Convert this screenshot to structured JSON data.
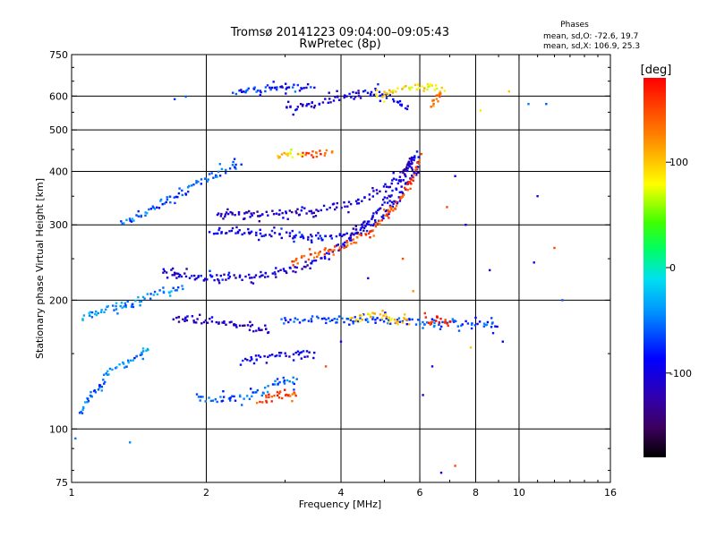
{
  "chart_data": {
    "type": "scatter",
    "title": "Tromsø 20141223 09:04:00–09:05:43",
    "subtitle": "RwPretec (8p)",
    "xlabel": "Frequency [MHz]",
    "ylabel": "Stationary phase Virtual Height [km]",
    "x_scale": "log",
    "y_scale": "log",
    "xlim": [
      1,
      16
    ],
    "ylim": [
      75,
      750
    ],
    "x_ticks": [
      1,
      2,
      4,
      6,
      8,
      10,
      16
    ],
    "x_tick_labels": [
      "1",
      "2",
      "4",
      "6",
      "8",
      "10",
      "16"
    ],
    "y_ticks": [
      75,
      100,
      200,
      300,
      400,
      500,
      600,
      750
    ],
    "y_tick_labels": [
      "75",
      "100",
      "200",
      "300",
      "400",
      "500",
      "600",
      "750"
    ],
    "grid": true,
    "grid_x": [
      2,
      4,
      6,
      8,
      10
    ],
    "grid_y": [
      100,
      200,
      300,
      400,
      500,
      600
    ],
    "stats": {
      "heading": "Phases",
      "line_o": "mean, sd,O: -72.6, 19.7",
      "line_x": "mean, sd,X: 106.9, 25.3"
    },
    "colorbar": {
      "unit": "[deg]",
      "min": -180,
      "max": 180,
      "ticks": [
        100,
        0,
        -100
      ],
      "tick_labels": [
        "100",
        "0",
        "-100"
      ],
      "colormap": "rainbow (black-purple-blue-cyan-green-yellow-orange-red)"
    },
    "point_traces": [
      {
        "x": [
          2.05,
          2.3,
          2.6,
          2.9,
          3.2,
          3.5,
          3.8,
          4.1,
          4.5,
          4.9,
          5.3,
          5.7,
          6.0
        ],
        "y": [
          290,
          290,
          288,
          285,
          282,
          280,
          279,
          283,
          293,
          310,
          340,
          380,
          420
        ],
        "phase": -95
      },
      {
        "x": [
          1.6,
          1.8,
          2.0,
          2.2,
          2.5,
          2.8,
          3.1,
          3.4,
          3.7,
          4.0,
          4.4,
          4.8,
          5.2,
          5.6,
          5.9
        ],
        "y": [
          235,
          228,
          225,
          226,
          227,
          230,
          236,
          245,
          257,
          270,
          290,
          320,
          355,
          400,
          450
        ],
        "phase": -100
      },
      {
        "x": [
          3.1,
          3.4,
          3.7,
          4.0,
          4.3,
          4.6,
          4.9,
          5.2,
          5.5,
          5.8,
          6.0
        ],
        "y": [
          248,
          252,
          258,
          265,
          275,
          288,
          305,
          325,
          350,
          390,
          430
        ],
        "phase": 150
      },
      {
        "x": [
          2.1,
          2.5,
          3.0,
          3.5,
          4.0,
          4.5,
          5.0,
          5.5,
          5.9
        ],
        "y": [
          320,
          318,
          320,
          325,
          333,
          345,
          365,
          395,
          440
        ],
        "phase": -110
      },
      {
        "x": [
          1.9,
          2.0,
          2.2,
          2.4,
          2.6,
          2.8,
          3.0,
          3.2
        ],
        "y": [
          120,
          118,
          117,
          118,
          121,
          125,
          128,
          130
        ],
        "phase": -60
      },
      {
        "x": [
          1.7,
          1.9,
          2.1,
          2.3,
          2.5,
          2.8
        ],
        "y": [
          182,
          180,
          178,
          176,
          172,
          168
        ],
        "phase": -115
      },
      {
        "x": [
          3.0,
          3.3,
          3.6,
          4.0,
          4.4,
          4.8,
          5.2,
          5.6,
          6.0,
          6.5,
          7.0,
          7.5,
          8.0,
          8.5,
          9.0
        ],
        "y": [
          178,
          180,
          181,
          180,
          180,
          180,
          179,
          178,
          178,
          177,
          177,
          176,
          176,
          175,
          175
        ],
        "phase": -70
      },
      {
        "x": [
          2.6,
          2.8,
          3.0,
          3.2
        ],
        "y": [
          117,
          118,
          120,
          122
        ],
        "phase": 150
      },
      {
        "x": [
          2.4,
          2.6,
          2.8,
          3.0,
          3.3,
          3.5
        ],
        "y": [
          145,
          147,
          148,
          150,
          150,
          148
        ],
        "phase": -90
      },
      {
        "x": [
          3.0,
          3.3,
          3.6,
          3.9,
          4.2,
          4.5,
          4.8,
          5.1,
          5.4,
          5.7
        ],
        "y": [
          560,
          570,
          580,
          590,
          598,
          605,
          610,
          600,
          580,
          550
        ],
        "phase": -100
      },
      {
        "x": [
          2.3,
          2.6,
          2.9,
          3.2,
          3.5
        ],
        "y": [
          615,
          620,
          625,
          630,
          635
        ],
        "phase": -80
      },
      {
        "x": [
          4.8,
          5.1,
          5.4,
          5.7,
          6.0,
          6.3,
          6.6,
          6.9
        ],
        "y": [
          600,
          610,
          620,
          625,
          628,
          630,
          625,
          620
        ],
        "phase": 90
      },
      {
        "x": [
          1.05,
          1.1,
          1.15,
          1.2,
          1.3,
          1.4,
          1.5
        ],
        "y": [
          110,
          118,
          125,
          135,
          140,
          148,
          155
        ],
        "phase": -50
      },
      {
        "x": [
          1.05,
          1.1,
          1.2,
          1.3,
          1.4,
          1.5,
          1.6,
          1.8
        ],
        "y": [
          180,
          185,
          190,
          195,
          200,
          205,
          210,
          215
        ],
        "phase": -45
      },
      {
        "x": [
          1.3,
          1.45,
          1.6,
          1.8,
          2.0,
          2.2,
          2.4
        ],
        "y": [
          300,
          320,
          340,
          360,
          385,
          400,
          420
        ],
        "phase": -60
      },
      {
        "x": [
          4.2,
          4.5,
          4.8,
          5.1,
          5.4,
          5.7
        ],
        "y": [
          180,
          183,
          185,
          183,
          180,
          178
        ],
        "phase": 100
      },
      {
        "x": [
          3.3,
          3.5,
          3.7,
          3.9
        ],
        "y": [
          440,
          445,
          442,
          440
        ],
        "phase": 150
      },
      {
        "x": [
          2.9,
          3.1,
          3.3
        ],
        "y": [
          432,
          436,
          438
        ],
        "phase": 90
      },
      {
        "x": [
          6.4,
          6.5,
          6.6,
          6.7
        ],
        "y": [
          560,
          590,
          600,
          610
        ],
        "phase": 130
      },
      {
        "x": [
          6.2,
          6.4,
          6.6,
          6.8,
          7.1
        ],
        "y": [
          180,
          178,
          180,
          178,
          175
        ],
        "phase": 160
      }
    ],
    "scattered_points": [
      {
        "x": 1.02,
        "y": 95,
        "phase": -50
      },
      {
        "x": 1.35,
        "y": 93,
        "phase": -45
      },
      {
        "x": 6.7,
        "y": 79,
        "phase": -90
      },
      {
        "x": 7.2,
        "y": 82,
        "phase": 150
      },
      {
        "x": 11.0,
        "y": 350,
        "phase": -110
      },
      {
        "x": 10.8,
        "y": 245,
        "phase": -100
      },
      {
        "x": 11.5,
        "y": 575,
        "phase": -60
      },
      {
        "x": 10.5,
        "y": 575,
        "phase": -50
      },
      {
        "x": 8.6,
        "y": 235,
        "phase": -110
      },
      {
        "x": 12.5,
        "y": 200,
        "phase": -60
      },
      {
        "x": 9.5,
        "y": 615,
        "phase": 100
      },
      {
        "x": 8.2,
        "y": 555,
        "phase": 90
      },
      {
        "x": 7.6,
        "y": 300,
        "phase": -100
      },
      {
        "x": 7.2,
        "y": 390,
        "phase": -100
      },
      {
        "x": 6.9,
        "y": 330,
        "phase": 150
      },
      {
        "x": 9.2,
        "y": 160,
        "phase": -90
      },
      {
        "x": 7.8,
        "y": 155,
        "phase": 100
      },
      {
        "x": 12.0,
        "y": 265,
        "phase": 150
      },
      {
        "x": 5.8,
        "y": 210,
        "phase": 120
      },
      {
        "x": 4.6,
        "y": 225,
        "phase": -110
      },
      {
        "x": 5.5,
        "y": 250,
        "phase": 150
      },
      {
        "x": 3.7,
        "y": 140,
        "phase": 150
      },
      {
        "x": 4.0,
        "y": 160,
        "phase": -100
      },
      {
        "x": 1.8,
        "y": 598,
        "phase": -60
      },
      {
        "x": 1.7,
        "y": 590,
        "phase": -70
      },
      {
        "x": 6.1,
        "y": 120,
        "phase": -110
      },
      {
        "x": 6.4,
        "y": 140,
        "phase": -100
      }
    ]
  }
}
